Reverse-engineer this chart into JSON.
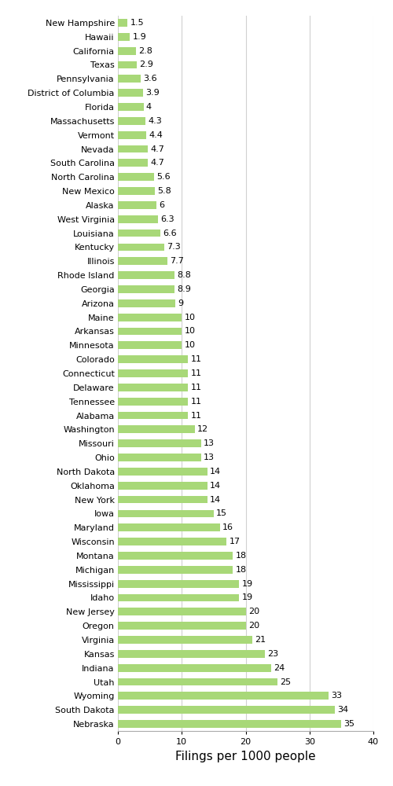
{
  "states": [
    "New Hampshire",
    "Hawaii",
    "California",
    "Texas",
    "Pennsylvania",
    "District of Columbia",
    "Florida",
    "Massachusetts",
    "Vermont",
    "Nevada",
    "South Carolina",
    "North Carolina",
    "New Mexico",
    "Alaska",
    "West Virginia",
    "Louisiana",
    "Kentucky",
    "Illinois",
    "Rhode Island",
    "Georgia",
    "Arizona",
    "Maine",
    "Arkansas",
    "Minnesota",
    "Colorado",
    "Connecticut",
    "Delaware",
    "Tennessee",
    "Alabama",
    "Washington",
    "Missouri",
    "Ohio",
    "North Dakota",
    "Oklahoma",
    "New York",
    "Iowa",
    "Maryland",
    "Wisconsin",
    "Montana",
    "Michigan",
    "Mississippi",
    "Idaho",
    "New Jersey",
    "Oregon",
    "Virginia",
    "Kansas",
    "Indiana",
    "Utah",
    "Wyoming",
    "South Dakota",
    "Nebraska"
  ],
  "values": [
    1.5,
    1.9,
    2.8,
    2.9,
    3.6,
    3.9,
    4.0,
    4.3,
    4.4,
    4.7,
    4.7,
    5.6,
    5.8,
    6.0,
    6.3,
    6.6,
    7.3,
    7.7,
    8.8,
    8.9,
    9.0,
    10,
    10,
    10,
    11,
    11,
    11,
    11,
    11,
    12,
    13,
    13,
    14,
    14,
    14,
    15,
    16,
    17,
    18,
    18,
    19,
    19,
    20,
    20,
    21,
    23,
    24,
    25,
    33,
    34,
    35
  ],
  "labels": [
    "1.5",
    "1.9",
    "2.8",
    "2.9",
    "3.6",
    "3.9",
    "4",
    "4.3",
    "4.4",
    "4.7",
    "4.7",
    "5.6",
    "5.8",
    "6",
    "6.3",
    "6.6",
    "7.3",
    "7.7",
    "8.8",
    "8.9",
    "9",
    "10",
    "10",
    "10",
    "11",
    "11",
    "11",
    "11",
    "11",
    "12",
    "13",
    "13",
    "14",
    "14",
    "14",
    "15",
    "16",
    "17",
    "18",
    "18",
    "19",
    "19",
    "20",
    "20",
    "21",
    "23",
    "24",
    "25",
    "33",
    "34",
    "35"
  ],
  "bar_color": "#a8d878",
  "xlabel": "Filings per 1000 people",
  "xlim": [
    0,
    40
  ],
  "xticks": [
    0,
    10,
    20,
    30,
    40
  ],
  "background_color": "#ffffff",
  "grid_color": "#d0d0d0",
  "label_fontsize": 8.0,
  "xlabel_fontsize": 11,
  "bar_height": 0.55
}
